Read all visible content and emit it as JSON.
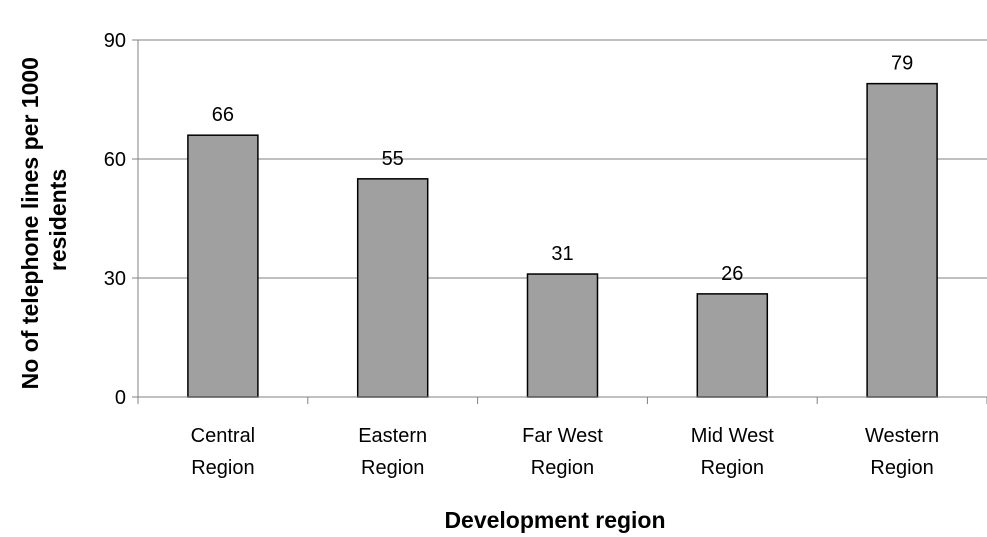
{
  "chart_data": {
    "type": "bar",
    "categories": [
      [
        "Central",
        "Region"
      ],
      [
        "Eastern",
        "Region"
      ],
      [
        "Far West",
        "Region"
      ],
      [
        "Mid West",
        "Region"
      ],
      [
        "Western",
        "Region"
      ]
    ],
    "values": [
      66,
      55,
      31,
      26,
      79
    ],
    "data_labels": [
      "66",
      "55",
      "31",
      "26",
      "79"
    ],
    "xlabel": "Development region",
    "ylabel_lines": [
      "No of telephone lines per  1000",
      "residents"
    ],
    "ylim": [
      0,
      90
    ],
    "yticks": [
      0,
      30,
      60,
      90
    ],
    "grid": true,
    "colors": {
      "bar_fill": "#a0a0a0",
      "bar_stroke": "#000000",
      "grid": "#808080",
      "axis": "#808080"
    }
  }
}
